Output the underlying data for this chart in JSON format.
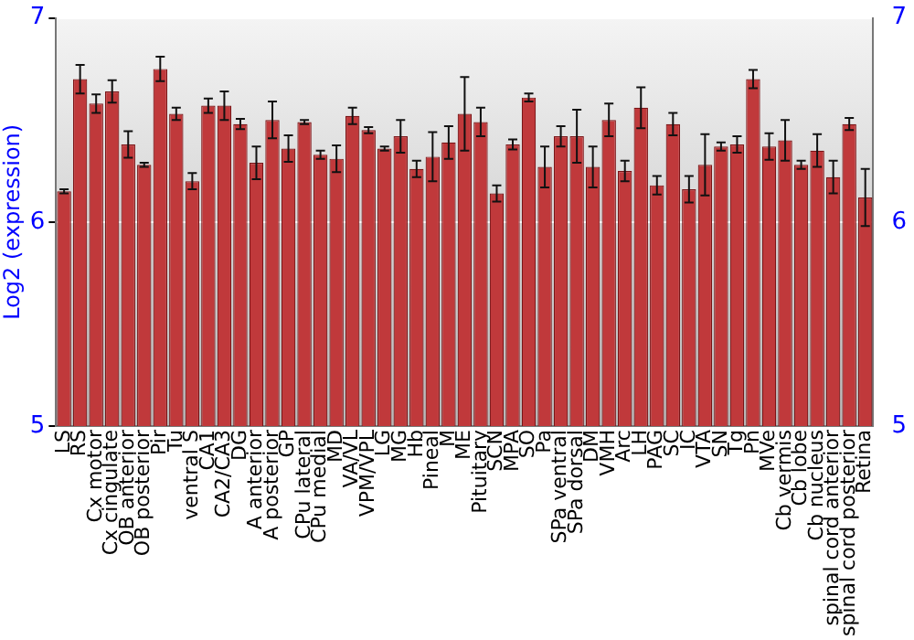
{
  "chart_data": {
    "type": "bar",
    "ylabel": "Log2 (expression)",
    "categories": [
      "LS",
      "RS",
      "Cx motor",
      "Cx cingulate",
      "OB anterior",
      "OB posterior",
      "Pir",
      "Tu",
      "ventral S",
      "CA1",
      "CA2/CA3",
      "DG",
      "A anterior",
      "A posterior",
      "GP",
      "CPu lateral",
      "CPu medial",
      "MD",
      "VA/VL",
      "VPM/VPL",
      "LG",
      "MG",
      "Hb",
      "Pineal",
      "M",
      "ME",
      "Pituitary",
      "SCN",
      "MPA",
      "SO",
      "Pa",
      "SPa ventral",
      "SPa dorsal",
      "DM",
      "VMH",
      "Arc",
      "LH",
      "PAG",
      "SC",
      "IC",
      "VTA",
      "SN",
      "Tg",
      "Pn",
      "MVe",
      "Cb vermis",
      "Cb lobe",
      "Cb nucleus",
      "spinal cord anterior",
      "spinal cord posterior",
      "Retina"
    ],
    "values": [
      6.15,
      6.7,
      6.58,
      6.64,
      6.38,
      6.28,
      6.75,
      6.53,
      6.2,
      6.57,
      6.57,
      6.48,
      6.29,
      6.5,
      6.36,
      6.49,
      6.33,
      6.31,
      6.52,
      6.45,
      6.36,
      6.42,
      6.26,
      6.32,
      6.39,
      6.53,
      6.49,
      6.14,
      6.38,
      6.61,
      6.27,
      6.42,
      6.42,
      6.27,
      6.5,
      6.25,
      6.56,
      6.18,
      6.48,
      6.16,
      6.28,
      6.37,
      6.38,
      6.7,
      6.37,
      6.4,
      6.28,
      6.35,
      6.22,
      6.48,
      6.12
    ],
    "errors": [
      0.01,
      0.07,
      0.045,
      0.055,
      0.065,
      0.01,
      0.06,
      0.03,
      0.04,
      0.035,
      0.07,
      0.025,
      0.08,
      0.09,
      0.065,
      0.01,
      0.02,
      0.065,
      0.04,
      0.015,
      0.01,
      0.08,
      0.04,
      0.12,
      0.08,
      0.18,
      0.07,
      0.04,
      0.025,
      0.02,
      0.1,
      0.05,
      0.13,
      0.1,
      0.08,
      0.05,
      0.1,
      0.045,
      0.055,
      0.065,
      0.15,
      0.02,
      0.04,
      0.045,
      0.065,
      0.1,
      0.02,
      0.08,
      0.08,
      0.03,
      0.14
    ],
    "color": "#c0393b",
    "ylim": [
      5,
      7
    ],
    "yticks": [
      5,
      6,
      7
    ],
    "y2lim": [
      5,
      7
    ],
    "y2ticks": [
      5,
      6,
      7
    ],
    "grid": "y",
    "legend": false
  }
}
